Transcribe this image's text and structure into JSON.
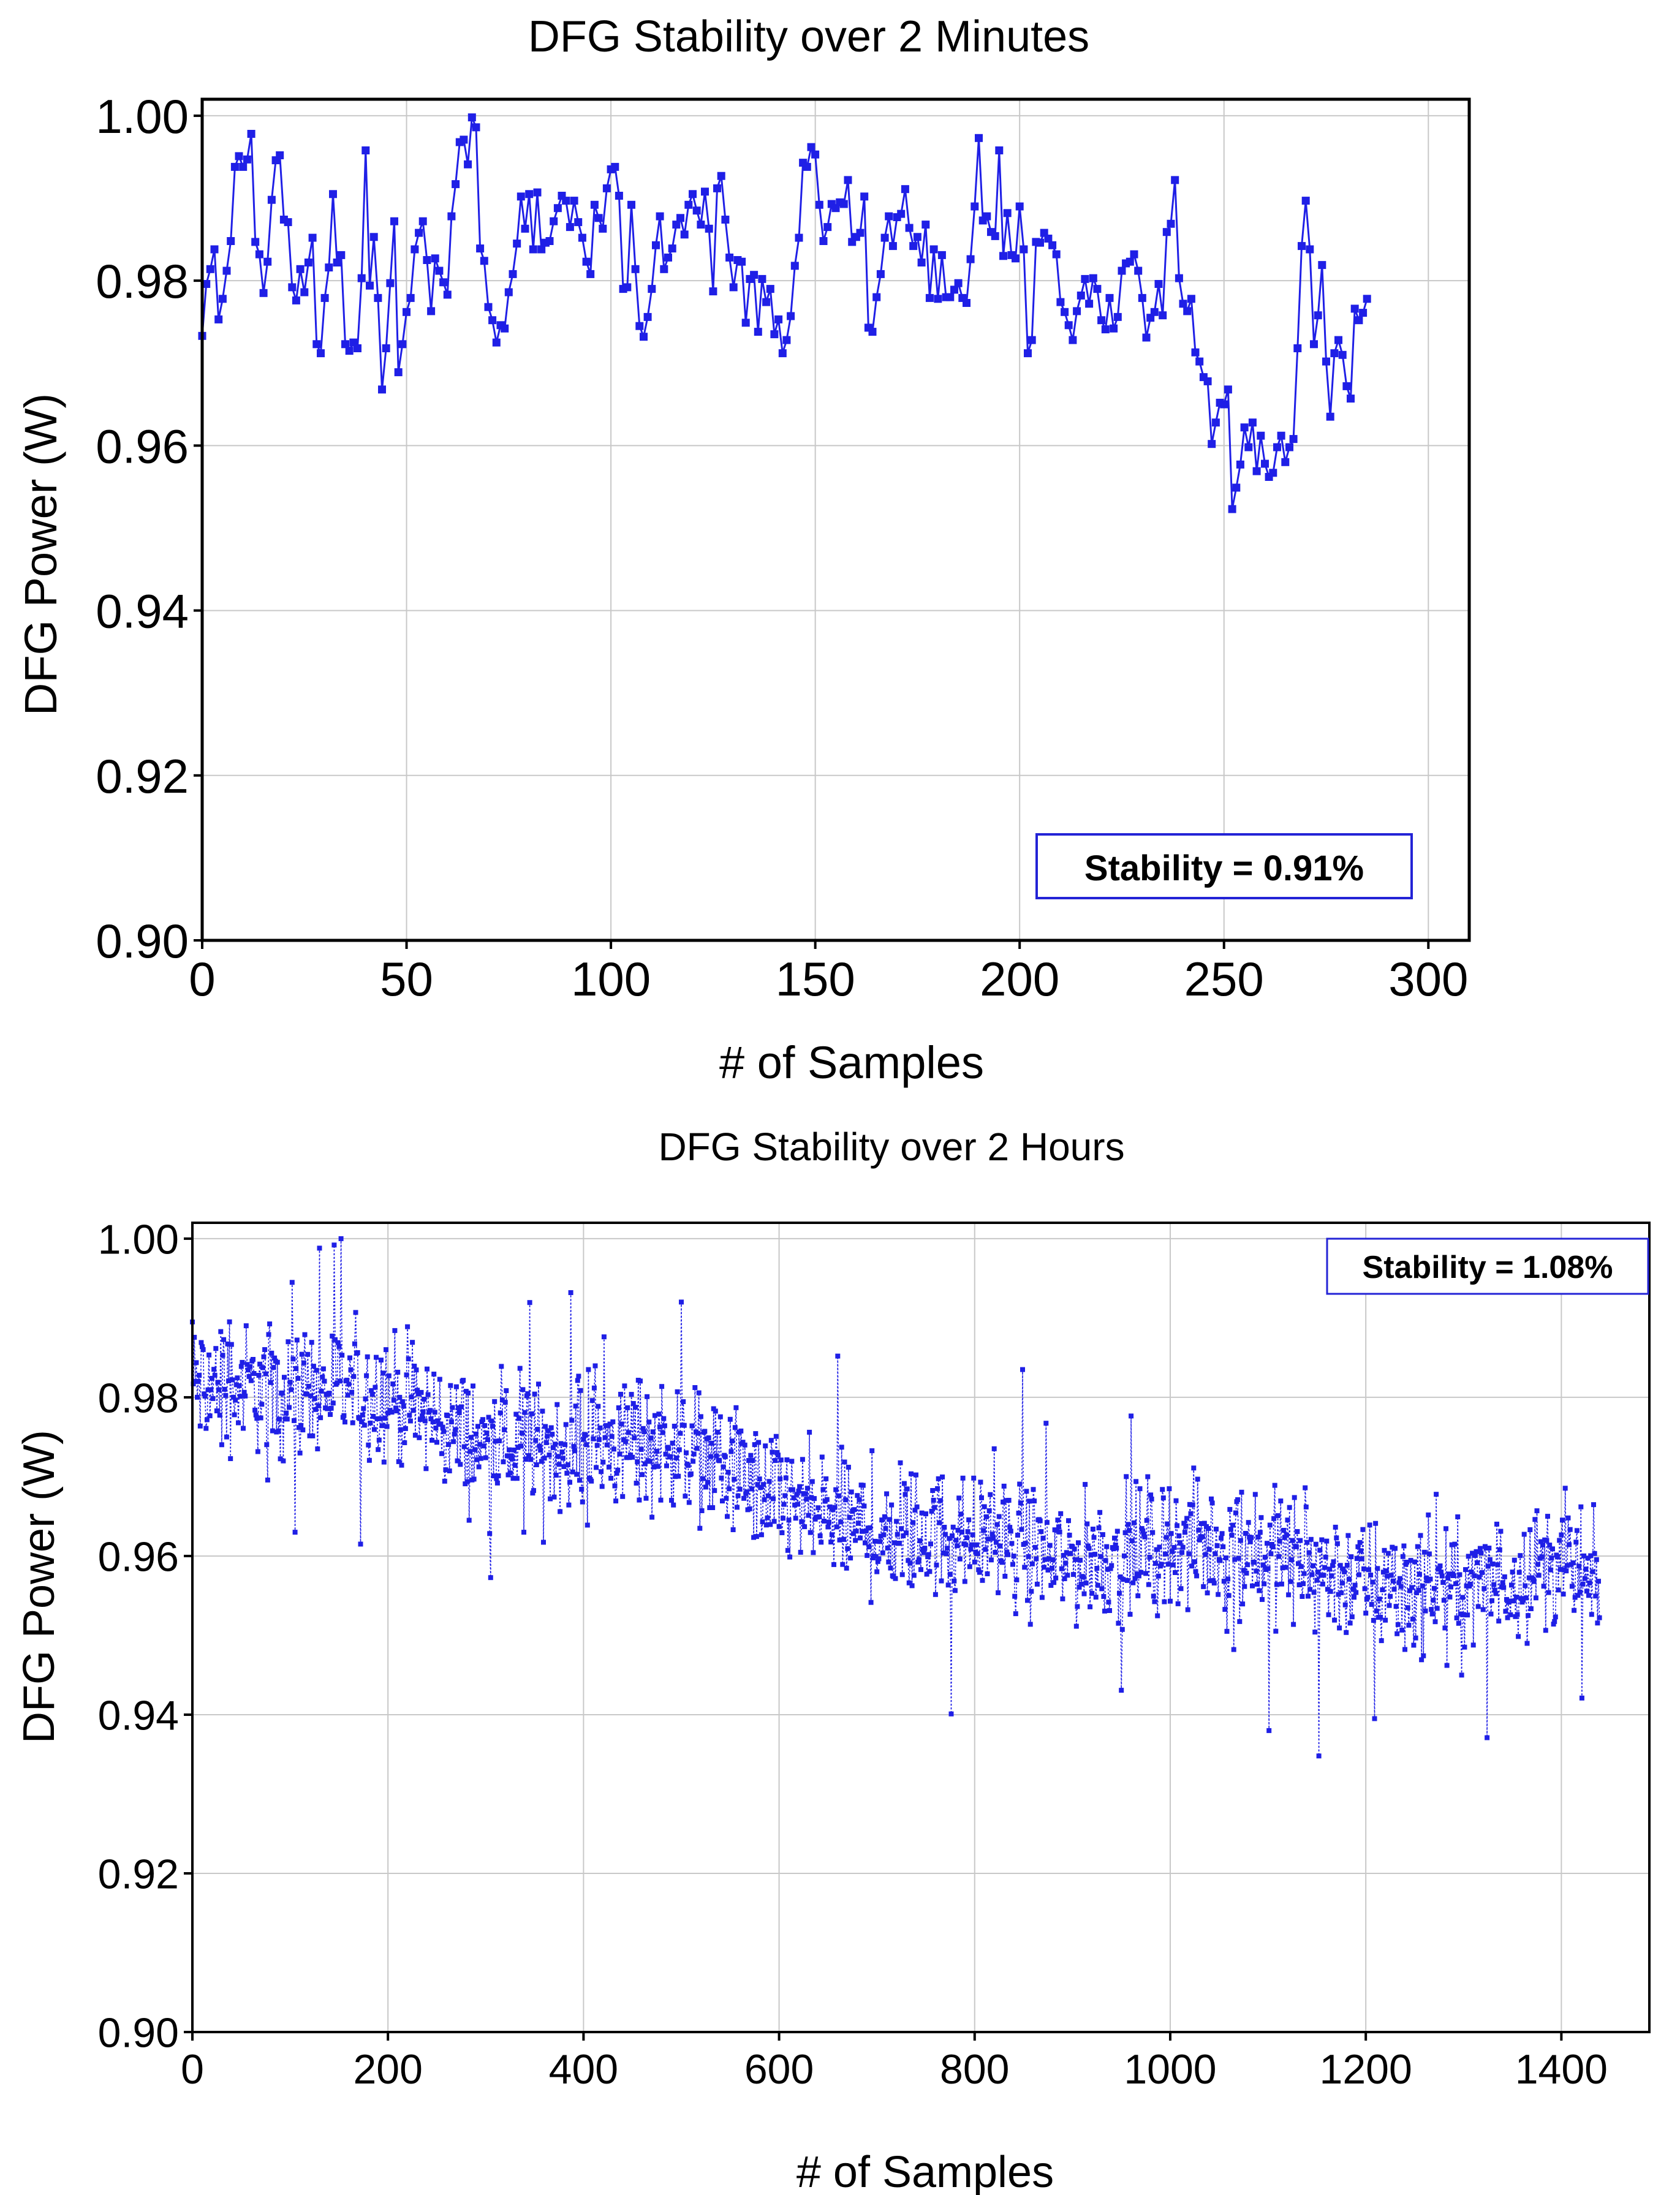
{
  "colors": {
    "series": "#1f1fe6",
    "grid": "#c8c8c8",
    "axis": "#000000",
    "box_border": "#2323d6"
  },
  "chart_data": [
    {
      "type": "line",
      "title": "DFG Stability over 2 Minutes",
      "xlabel": "# of Samples",
      "ylabel": "DFG Power (W)",
      "xlim": [
        0,
        310
      ],
      "ylim": [
        0.9,
        1.002
      ],
      "xticks": [
        0,
        50,
        100,
        150,
        200,
        250,
        300
      ],
      "xtick_labels": [
        "0",
        "50",
        "100",
        "150",
        "200",
        "250",
        "300"
      ],
      "yticks": [
        0.9,
        0.92,
        0.94,
        0.96,
        0.98,
        1.0
      ],
      "ytick_labels": [
        "0.90",
        "0.92",
        "0.94",
        "0.96",
        "0.98",
        "1.00"
      ],
      "grid": true,
      "line_style": "solid",
      "annotation": "Stability = 0.91%",
      "series": [
        {
          "name": "DFG Power",
          "x_start": 0,
          "x_step": 1,
          "values": [
            0.9733,
            0.9796,
            0.9814,
            0.9838,
            0.9753,
            0.9778,
            0.9812,
            0.9848,
            0.9938,
            0.9951,
            0.9938,
            0.9947,
            0.9978,
            0.9847,
            0.9832,
            0.9785,
            0.9823,
            0.9898,
            0.9946,
            0.9952,
            0.9874,
            0.9871,
            0.9792,
            0.9776,
            0.9814,
            0.9786,
            0.9822,
            0.9852,
            0.9723,
            0.9712,
            0.9779,
            0.9816,
            0.9905,
            0.9822,
            0.9831,
            0.9723,
            0.9715,
            0.9725,
            0.9718,
            0.9803,
            0.9958,
            0.9794,
            0.9853,
            0.9779,
            0.9668,
            0.9718,
            0.9797,
            0.9872,
            0.9689,
            0.9723,
            0.9762,
            0.9779,
            0.9838,
            0.9858,
            0.9872,
            0.9825,
            0.9763,
            0.9827,
            0.9812,
            0.9798,
            0.9783,
            0.9878,
            0.9917,
            0.9968,
            0.9971,
            0.9941,
            0.9998,
            0.9986,
            0.9839,
            0.9824,
            0.9768,
            0.9752,
            0.9725,
            0.9746,
            0.9742,
            0.9786,
            0.9808,
            0.9845,
            0.9902,
            0.9863,
            0.9905,
            0.9838,
            0.9907,
            0.9838,
            0.9846,
            0.9848,
            0.9872,
            0.9888,
            0.9903,
            0.9897,
            0.9865,
            0.9897,
            0.9871,
            0.9852,
            0.9823,
            0.9808,
            0.9892,
            0.9876,
            0.9863,
            0.9912,
            0.9935,
            0.9938,
            0.9903,
            0.979,
            0.9792,
            0.9892,
            0.9814,
            0.9745,
            0.9732,
            0.9756,
            0.979,
            0.9843,
            0.9878,
            0.9814,
            0.9828,
            0.9839,
            0.9868,
            0.9876,
            0.9856,
            0.9892,
            0.9905,
            0.9885,
            0.9868,
            0.9908,
            0.9863,
            0.9787,
            0.9912,
            0.9927,
            0.9874,
            0.9828,
            0.9792,
            0.9825,
            0.9823,
            0.9749,
            0.9802,
            0.9807,
            0.9738,
            0.9802,
            0.9774,
            0.979,
            0.9735,
            0.9753,
            0.9712,
            0.9728,
            0.9757,
            0.9818,
            0.9852,
            0.9943,
            0.9938,
            0.9962,
            0.9953,
            0.9892,
            0.9848,
            0.9865,
            0.9893,
            0.9888,
            0.9895,
            0.9893,
            0.9922,
            0.9847,
            0.9853,
            0.9858,
            0.9902,
            0.9743,
            0.9738,
            0.978,
            0.9808,
            0.9852,
            0.9878,
            0.9842,
            0.9877,
            0.9881,
            0.9911,
            0.9864,
            0.9842,
            0.9853,
            0.9822,
            0.9868,
            0.9779,
            0.9838,
            0.9778,
            0.9831,
            0.978,
            0.978,
            0.9789,
            0.9797,
            0.9779,
            0.9773,
            0.9826,
            0.989,
            0.9973,
            0.9873,
            0.9878,
            0.9859,
            0.9854,
            0.9958,
            0.983,
            0.9882,
            0.9831,
            0.9827,
            0.989,
            0.9838,
            0.9712,
            0.9728,
            0.9847,
            0.9846,
            0.9858,
            0.9851,
            0.9843,
            0.9832,
            0.9774,
            0.9762,
            0.9746,
            0.9728,
            0.9763,
            0.9782,
            0.9802,
            0.9772,
            0.9803,
            0.979,
            0.9752,
            0.9741,
            0.9779,
            0.9742,
            0.9756,
            0.9812,
            0.9821,
            0.9823,
            0.9832,
            0.9812,
            0.9779,
            0.9731,
            0.9755,
            0.9762,
            0.9796,
            0.9758,
            0.9859,
            0.9869,
            0.9922,
            0.9803,
            0.9772,
            0.9763,
            0.9778,
            0.9713,
            0.9702,
            0.9683,
            0.9678,
            0.9602,
            0.9628,
            0.9652,
            0.965,
            0.9668,
            0.9523,
            0.9549,
            0.9577,
            0.9622,
            0.9598,
            0.9628,
            0.9569,
            0.9612,
            0.9578,
            0.9562,
            0.9567,
            0.9598,
            0.9612,
            0.958,
            0.9598,
            0.9608,
            0.9718,
            0.9842,
            0.9897,
            0.9838,
            0.9723,
            0.9758,
            0.9819,
            0.9702,
            0.9635,
            0.9712,
            0.9728,
            0.971,
            0.9672,
            0.9657,
            0.9766,
            0.9752,
            0.9761,
            0.9778
          ]
        }
      ]
    },
    {
      "type": "line",
      "title": "DFG Stability over 2 Hours",
      "xlabel": "# of Samples",
      "ylabel": "DFG Power (W)",
      "xlim": [
        0,
        1490
      ],
      "ylim": [
        0.9,
        1.002
      ],
      "xticks": [
        0,
        200,
        400,
        600,
        800,
        1000,
        1200,
        1400
      ],
      "xtick_labels": [
        "0",
        "200",
        "400",
        "600",
        "800",
        "1000",
        "1200",
        "1400"
      ],
      "yticks": [
        0.9,
        0.92,
        0.94,
        0.96,
        0.98,
        1.0
      ],
      "ytick_labels": [
        "0.90",
        "0.92",
        "0.94",
        "0.96",
        "0.98",
        "1.00"
      ],
      "grid": true,
      "line_style": "dotted",
      "annotation": "Stability = 1.08%",
      "series": [
        {
          "name": "DFG Power",
          "x_start": 0,
          "x_step": 1,
          "count": 1440,
          "trend": [
            [
              0,
              0.9815
            ],
            [
              200,
              0.9805
            ],
            [
              300,
              0.9735
            ],
            [
              500,
              0.9745
            ],
            [
              600,
              0.9668
            ],
            [
              700,
              0.9628
            ],
            [
              800,
              0.9628
            ],
            [
              900,
              0.9592
            ],
            [
              1000,
              0.9615
            ],
            [
              1100,
              0.9608
            ],
            [
              1200,
              0.9565
            ],
            [
              1300,
              0.9555
            ],
            [
              1400,
              0.9595
            ],
            [
              1440,
              0.9548
            ]
          ],
          "noise_amplitude": 0.0062,
          "extremes": [
            [
              0,
              0.9895
            ],
            [
              130,
              0.9988
            ],
            [
              152,
              1.0
            ],
            [
              105,
              0.963
            ],
            [
              172,
              0.9615
            ],
            [
              776,
              0.9401
            ],
            [
              1101,
              0.938
            ],
            [
              1152,
              0.9348
            ],
            [
              1209,
              0.9395
            ],
            [
              1324,
              0.9371
            ],
            [
              849,
              0.9835
            ],
            [
              660,
              0.9852
            ]
          ]
        }
      ]
    }
  ]
}
